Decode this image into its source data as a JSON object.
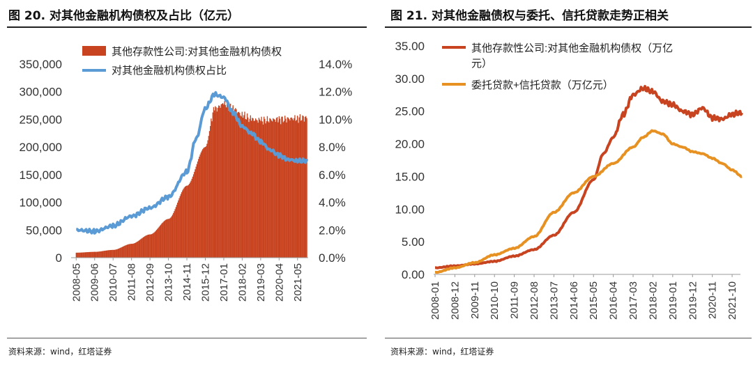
{
  "left": {
    "title": "图 20. 对其他金融机构债权及占比（亿元）",
    "source": "资料来源：wind，红塔证券",
    "chart_data": {
      "type": "bar+line",
      "title": "图 20. 对其他金融机构债权及占比（亿元）",
      "categories": [
        "2008-05",
        "2009-06",
        "2010-07",
        "2011-08",
        "2012-09",
        "2013-10",
        "2014-11",
        "2015-12",
        "2017-01",
        "2018-02",
        "2019-03",
        "2020-04",
        "2021-05"
      ],
      "ylim_left": [
        0,
        350000
      ],
      "yticks_left": [
        "0",
        "50,000",
        "100,000",
        "150,000",
        "200,000",
        "250,000",
        "300,000",
        "350,000"
      ],
      "ylim_right": [
        0,
        14
      ],
      "yticks_right": [
        "0.0%",
        "2.0%",
        "4.0%",
        "6.0%",
        "8.0%",
        "10.0%",
        "12.0%",
        "14.0%"
      ],
      "series": [
        {
          "name": "其他存款性公司:对其他金融机构债权",
          "kind": "bar",
          "color": "#c8431f",
          "axis": "left",
          "x": [
            0,
            1,
            2,
            3,
            4,
            5,
            6,
            7,
            7.5,
            8,
            8.5,
            9,
            9.5,
            10,
            11,
            12,
            12.5
          ],
          "values": [
            9000,
            10500,
            14000,
            25000,
            42000,
            70000,
            130000,
            200000,
            268000,
            278000,
            270000,
            258000,
            250000,
            248000,
            250000,
            252000,
            253000
          ]
        },
        {
          "name": "对其他金融机构债权占比",
          "kind": "line",
          "color": "#5b9bd5",
          "axis": "right",
          "x": [
            0,
            1,
            2,
            3,
            4,
            5,
            6,
            6.5,
            7,
            7.5,
            8,
            8.5,
            9,
            9.5,
            10,
            10.5,
            11,
            11.5,
            12,
            12.5
          ],
          "values": [
            2.0,
            1.9,
            2.3,
            3.0,
            3.6,
            4.4,
            6.2,
            8.6,
            10.8,
            11.8,
            11.6,
            10.5,
            9.5,
            9.0,
            8.4,
            7.8,
            7.4,
            7.1,
            7.0,
            7.0
          ]
        }
      ]
    }
  },
  "right": {
    "title": "图 21. 对其他金融债权与委托、信托贷款走势正相关",
    "source": "资料来源：wind，红塔证券",
    "chart_data": {
      "type": "line",
      "title": "图 21. 对其他金融债权与委托、信托贷款走势正相关",
      "categories": [
        "2008-01",
        "2008-12",
        "2009-11",
        "2010-10",
        "2011-09",
        "2012-08",
        "2013-07",
        "2014-06",
        "2015-05",
        "2016-04",
        "2017-03",
        "2018-02",
        "2019-01",
        "2019-12",
        "2020-11",
        "2021-10"
      ],
      "ylim": [
        0,
        35
      ],
      "yticks": [
        "0.00",
        "5.00",
        "10.00",
        "15.00",
        "20.00",
        "25.00",
        "30.00",
        "35.00"
      ],
      "series": [
        {
          "name": "其他存款性公司:对其他金融机构债权（万亿元）",
          "color": "#c8431f",
          "x": [
            0,
            1,
            2,
            3,
            4,
            5,
            6,
            7,
            8,
            8.5,
            9,
            9.5,
            10,
            10.5,
            11,
            11.5,
            12,
            12.5,
            13,
            13.5,
            14,
            14.5,
            15,
            15.5
          ],
          "values": [
            1.0,
            1.3,
            1.6,
            2.0,
            2.8,
            3.8,
            6.0,
            9.5,
            14.5,
            18.5,
            21.0,
            24.5,
            27.5,
            28.5,
            28.0,
            26.5,
            26.0,
            25.0,
            24.5,
            25.5,
            24.0,
            23.8,
            24.5,
            24.8
          ]
        },
        {
          "name": "委托贷款+信托贷款（万亿元）",
          "color": "#e69122",
          "x": [
            0,
            1,
            2,
            3,
            4,
            5,
            6,
            7,
            8,
            9,
            10,
            10.5,
            11,
            11.5,
            12,
            12.5,
            13,
            13.5,
            14,
            14.5,
            15,
            15.5
          ],
          "values": [
            0.3,
            1.0,
            1.8,
            3.0,
            4.0,
            5.8,
            9.5,
            12.5,
            15.0,
            17.0,
            19.5,
            21.0,
            22.0,
            21.5,
            20.0,
            19.5,
            18.8,
            18.5,
            17.8,
            17.0,
            16.0,
            15.0
          ]
        }
      ]
    }
  }
}
